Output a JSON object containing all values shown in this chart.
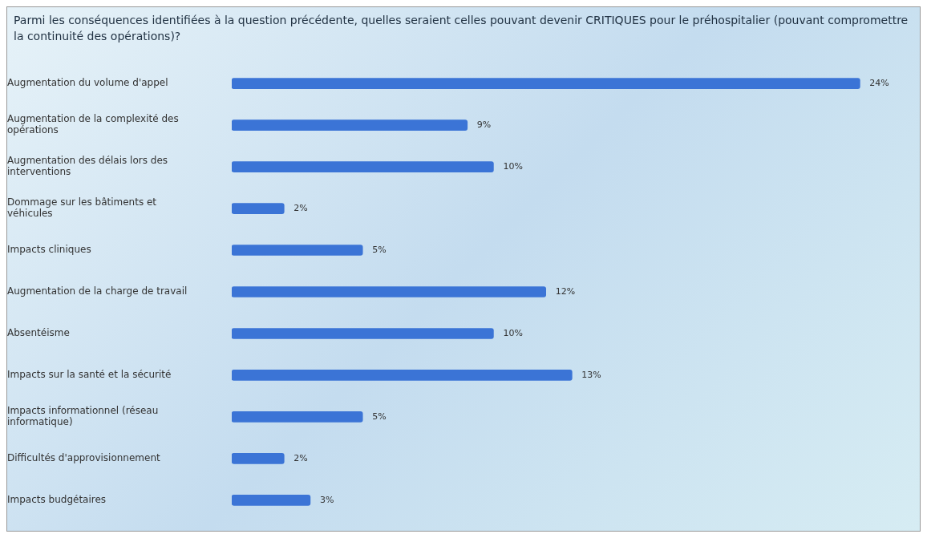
{
  "chart_data": {
    "type": "bar",
    "orientation": "horizontal",
    "title": "Parmi les conséquences identifiées à la question précédente, quelles seraient celles pouvant devenir CRITIQUES pour le préhospitalier (pouvant compromettre la continuité des opérations)?",
    "categories": [
      "Augmentation du volume d'appel",
      "Augmentation de la complexité des opérations",
      "Augmentation des délais lors des interventions",
      "Dommage sur les bâtiments et véhicules",
      "Impacts cliniques",
      "Augmentation de la charge de travail",
      "Absentéisme",
      "Impacts sur la santé et la sécurité",
      "Impacts informationnel (réseau informatique)",
      "Difficultés d'approvisionnement",
      "Impacts budgétaires"
    ],
    "values": [
      24,
      9,
      10,
      2,
      5,
      12,
      10,
      13,
      5,
      2,
      3
    ],
    "value_labels": [
      "24%",
      "9%",
      "10%",
      "2%",
      "5%",
      "12%",
      "10%",
      "13%",
      "5%",
      "2%",
      "3%"
    ],
    "color": "#3b74d6",
    "grid": false,
    "legend": false
  }
}
